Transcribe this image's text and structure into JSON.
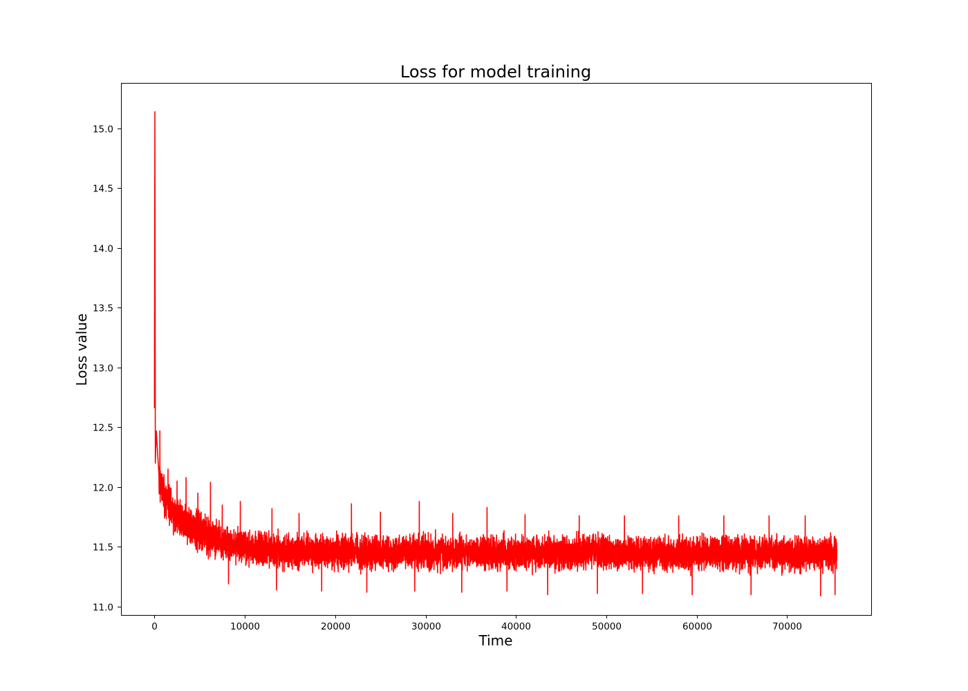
{
  "chart_data": {
    "type": "line",
    "title": "Loss for model training",
    "xlabel": "Time",
    "ylabel": "Loss value",
    "xlim": [
      -3700,
      79300
    ],
    "ylim": [
      10.93,
      15.38
    ],
    "x_ticks": [
      0,
      10000,
      20000,
      30000,
      40000,
      50000,
      60000,
      70000
    ],
    "x_tick_labels": [
      "0",
      "10000",
      "20000",
      "30000",
      "40000",
      "50000",
      "60000",
      "70000"
    ],
    "y_ticks": [
      11.0,
      11.5,
      12.0,
      12.5,
      13.0,
      13.5,
      14.0,
      14.5,
      15.0
    ],
    "y_tick_labels": [
      "11.0",
      "11.5",
      "12.0",
      "12.5",
      "13.0",
      "13.5",
      "14.0",
      "14.5",
      "15.0"
    ],
    "grid": false,
    "series_color": "#ff0000",
    "series": [
      {
        "x_start": 0,
        "x_end": 75500,
        "points": [
          [
            0,
            12.66
          ],
          [
            50,
            15.14
          ],
          [
            100,
            12.2
          ],
          [
            200,
            12.47
          ],
          [
            500,
            12.1
          ],
          [
            1000,
            11.95
          ],
          [
            2000,
            11.8
          ],
          [
            3000,
            11.72
          ],
          [
            4000,
            11.67
          ],
          [
            5000,
            11.63
          ],
          [
            6000,
            11.6
          ],
          [
            7000,
            11.56
          ],
          [
            8000,
            11.53
          ],
          [
            10000,
            11.5
          ],
          [
            12000,
            11.48
          ],
          [
            15000,
            11.46
          ],
          [
            20000,
            11.46
          ],
          [
            30000,
            11.45
          ],
          [
            40000,
            11.45
          ],
          [
            50000,
            11.45
          ],
          [
            60000,
            11.45
          ],
          [
            70000,
            11.45
          ],
          [
            75500,
            11.45
          ]
        ],
        "noise_amplitude": 0.2,
        "spikes": [
          [
            600,
            12.47
          ],
          [
            1500,
            12.15
          ],
          [
            2500,
            12.05
          ],
          [
            3500,
            12.08
          ],
          [
            4800,
            11.95
          ],
          [
            6200,
            12.04
          ],
          [
            7500,
            11.85
          ],
          [
            9500,
            11.88
          ],
          [
            13000,
            11.82
          ],
          [
            16000,
            11.78
          ],
          [
            21800,
            11.86
          ],
          [
            25000,
            11.79
          ],
          [
            29300,
            11.88
          ],
          [
            33000,
            11.78
          ],
          [
            36800,
            11.83
          ],
          [
            41000,
            11.77
          ],
          [
            47000,
            11.76
          ],
          [
            52000,
            11.76
          ],
          [
            58000,
            11.76
          ],
          [
            63000,
            11.76
          ],
          [
            68000,
            11.76
          ],
          [
            72000,
            11.76
          ]
        ],
        "dips": [
          [
            8200,
            11.19
          ],
          [
            13500,
            11.14
          ],
          [
            18500,
            11.13
          ],
          [
            23500,
            11.12
          ],
          [
            28800,
            11.13
          ],
          [
            34000,
            11.12
          ],
          [
            39000,
            11.13
          ],
          [
            43500,
            11.1
          ],
          [
            49000,
            11.11
          ],
          [
            54000,
            11.11
          ],
          [
            59500,
            11.1
          ],
          [
            66000,
            11.1
          ],
          [
            73700,
            11.09
          ],
          [
            75300,
            11.1
          ]
        ]
      }
    ]
  }
}
